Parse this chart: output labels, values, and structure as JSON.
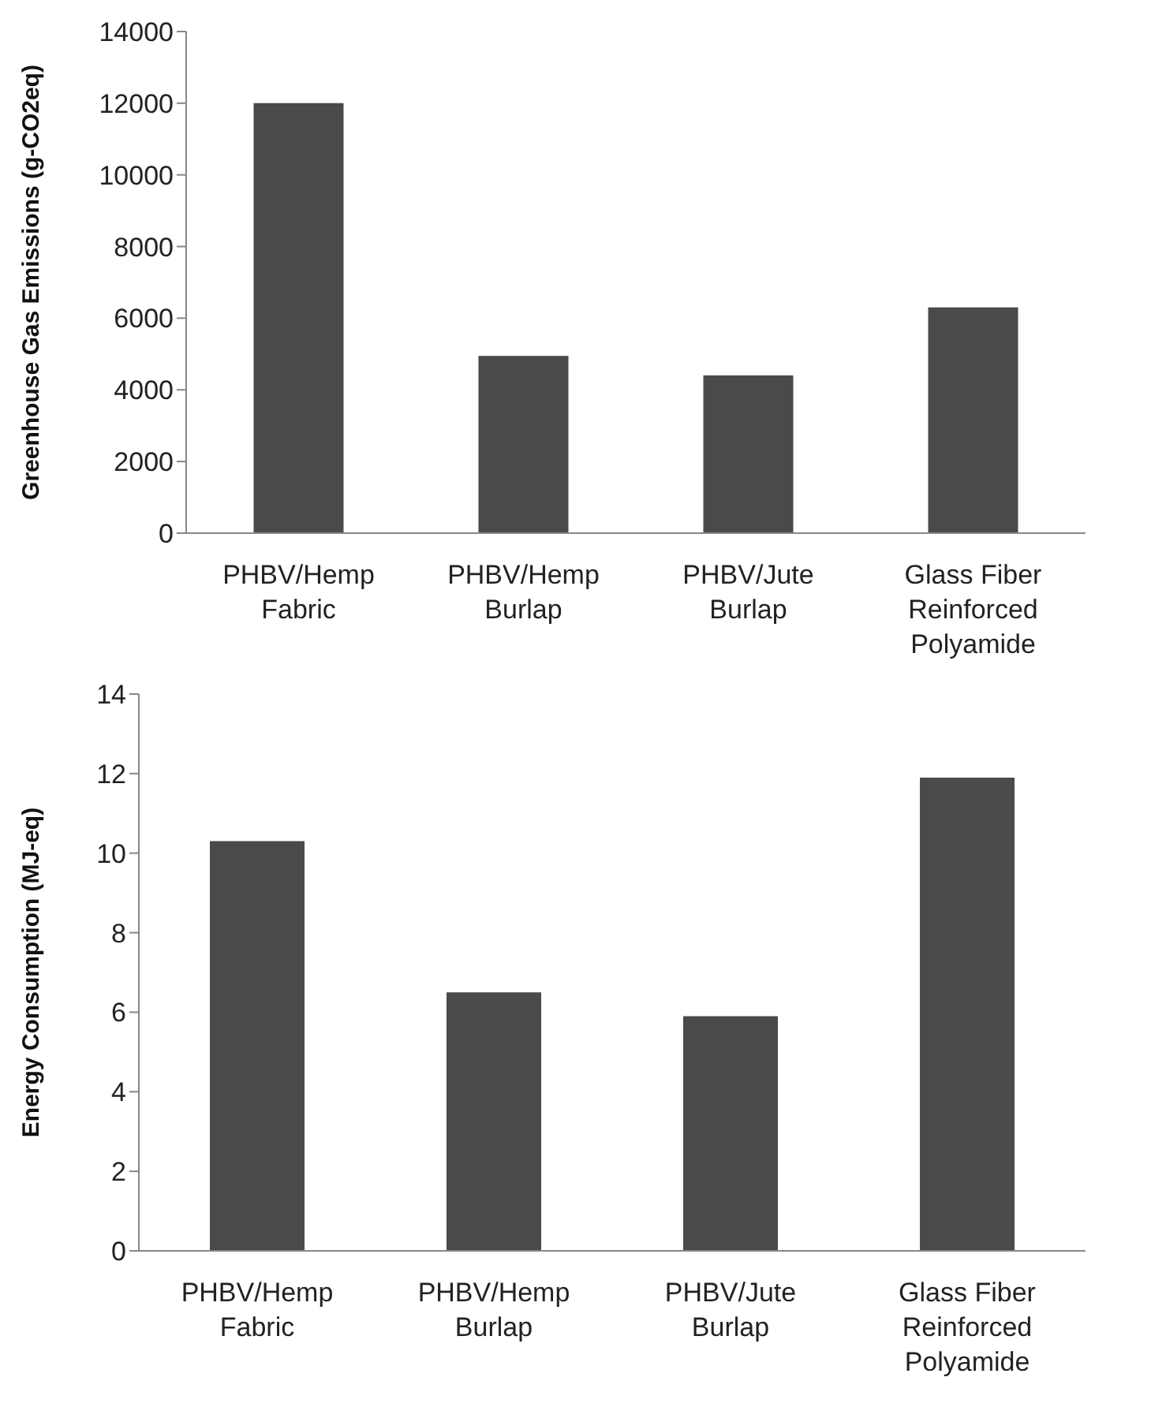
{
  "chart_data": [
    {
      "type": "bar",
      "ylabel": "Greenhouse Gas Emissions (g-CO2eq)",
      "categories": [
        "PHBV/Hemp Fabric",
        "PHBV/Hemp Burlap",
        "PHBV/Jute Burlap",
        "Glass Fiber Reinforced Polyamide"
      ],
      "values": [
        12000,
        4950,
        4400,
        6300
      ],
      "color": "#4a4a4a",
      "ylim": [
        0,
        14000
      ],
      "yticks": [
        0,
        2000,
        4000,
        6000,
        8000,
        10000,
        12000,
        14000
      ],
      "grid": false,
      "legend": false
    },
    {
      "type": "bar",
      "ylabel": "Energy Consumption (MJ-eq)",
      "categories": [
        "PHBV/Hemp Fabric",
        "PHBV/Hemp Burlap",
        "PHBV/Jute Burlap",
        "Glass Fiber Reinforced Polyamide"
      ],
      "values": [
        10.3,
        6.5,
        5.9,
        11.9
      ],
      "color": "#4a4a4a",
      "ylim": [
        0,
        14
      ],
      "yticks": [
        0,
        2,
        4,
        6,
        8,
        10,
        12,
        14
      ],
      "grid": false,
      "legend": false
    }
  ]
}
